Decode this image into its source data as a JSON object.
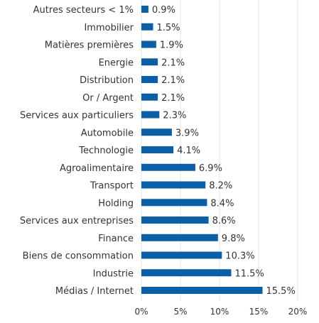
{
  "chart_data": {
    "type": "bar",
    "orientation": "horizontal",
    "categories": [
      "Autres secteurs < 1%",
      "Immobilier",
      "Matières premières",
      "Energie",
      "Distribution",
      "Or / Argent",
      "Services aux particuliers",
      "Automobile",
      "Technologie",
      "Agroalimentaire",
      "Transport",
      "Holding",
      "Services aux entreprises",
      "Finance",
      "Biens de consommation",
      "Industrie",
      "Médias / Internet"
    ],
    "values": [
      0.9,
      1.5,
      1.9,
      2.1,
      2.1,
      2.1,
      2.3,
      3.9,
      4.1,
      6.9,
      8.2,
      8.4,
      8.6,
      9.8,
      10.3,
      11.5,
      15.5
    ],
    "value_labels": [
      "0.9%",
      "1.5%",
      "1.9%",
      "2.1%",
      "2.1%",
      "2.1%",
      "2.3%",
      "3.9%",
      "4.1%",
      "6.9%",
      "8.2%",
      "8.4%",
      "8.6%",
      "9.8%",
      "10.3%",
      "11.5%",
      "15.5%"
    ],
    "xlim": [
      0,
      20
    ],
    "xticks": [
      0,
      5,
      10,
      15,
      20
    ],
    "xtick_labels": [
      "0%",
      "5%",
      "10%",
      "15%",
      "20%"
    ],
    "grid": "vertical",
    "legend": "none",
    "bar_color": "#0a5fa6",
    "title": "",
    "xlabel": "",
    "ylabel": ""
  }
}
